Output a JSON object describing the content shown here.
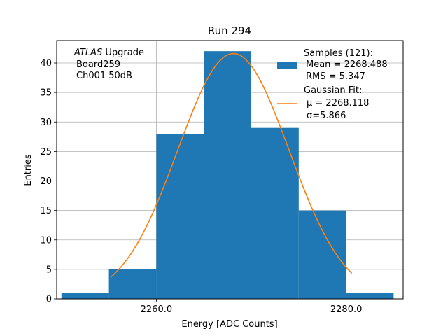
{
  "chart_data": {
    "type": "bar",
    "title": "Run 294",
    "xlabel": "Energy [ADC Counts]",
    "ylabel": "Entries",
    "xlim": [
      2249.5,
      2286.0
    ],
    "ylim": [
      0,
      43.8
    ],
    "grid": true,
    "x_ticks": [
      2260,
      2280
    ],
    "x_tick_labels": [
      "2260.0",
      "2280.0"
    ],
    "y_ticks": [
      0,
      5,
      10,
      15,
      20,
      25,
      30,
      35,
      40
    ],
    "y_tick_labels": [
      "0",
      "5",
      "10",
      "15",
      "20",
      "25",
      "30",
      "35",
      "40"
    ],
    "bin_edges": [
      2250,
      2255,
      2260,
      2265,
      2270,
      2275,
      2280,
      2285
    ],
    "values": [
      1,
      5,
      28,
      42,
      29,
      15,
      1
    ],
    "fit": {
      "name": "Gaussian Fit",
      "mu": 2268.118,
      "sigma": 5.866,
      "amplitude": 41.6,
      "x_range": [
        2255.2,
        2280.6
      ],
      "color": "#ff7f0e"
    },
    "bar_color": "#1f77b4",
    "annotation": {
      "line1_italic": "ATLAS",
      "line1_rest": " Upgrade",
      "line2": "Board259",
      "line3": "Ch001 50dB"
    },
    "legend": {
      "position": "top-right",
      "samples_title": "Samples (121):",
      "samples_mean": "Mean = 2268.488",
      "samples_rms": "RMS = 5.347",
      "fit_title": "Gaussian Fit:",
      "fit_mu": "μ = 2268.118",
      "fit_sigma": "σ=5.866"
    }
  }
}
